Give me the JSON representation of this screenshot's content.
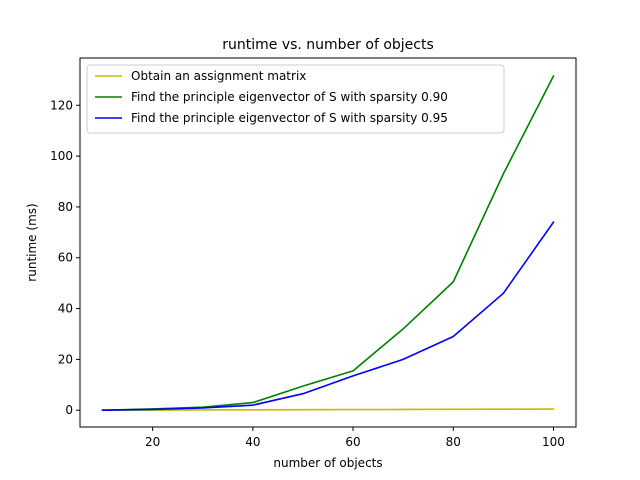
{
  "chart_data": {
    "type": "line",
    "title": "runtime vs. number of objects",
    "xlabel": "number of objects",
    "ylabel": "runtime (ms)",
    "xlim": [
      5.5,
      104.5
    ],
    "ylim": [
      -6.6,
      138.6
    ],
    "xticks": [
      20,
      40,
      60,
      80,
      100
    ],
    "yticks": [
      0,
      20,
      40,
      60,
      80,
      100,
      120
    ],
    "grid": false,
    "legend_position": "top-left",
    "x": [
      10,
      20,
      30,
      40,
      50,
      60,
      70,
      80,
      90,
      100
    ],
    "series": [
      {
        "name": "Obtain an assignment matrix",
        "color": "#bfbf00",
        "values": [
          0.0,
          0.05,
          0.1,
          0.15,
          0.2,
          0.25,
          0.3,
          0.35,
          0.4,
          0.45
        ]
      },
      {
        "name": "Find the principle eigenvector of S with sparsity 0.90",
        "color": "#008000",
        "values": [
          0.0,
          0.5,
          1.2,
          3.0,
          9.5,
          15.5,
          32.0,
          50.5,
          93.0,
          131.5
        ]
      },
      {
        "name": "Find the principle eigenvector of S with sparsity 0.95",
        "color": "#0000ff",
        "values": [
          0.0,
          0.3,
          0.9,
          2.0,
          6.5,
          13.5,
          20.0,
          29.0,
          46.0,
          74.0
        ]
      }
    ]
  }
}
